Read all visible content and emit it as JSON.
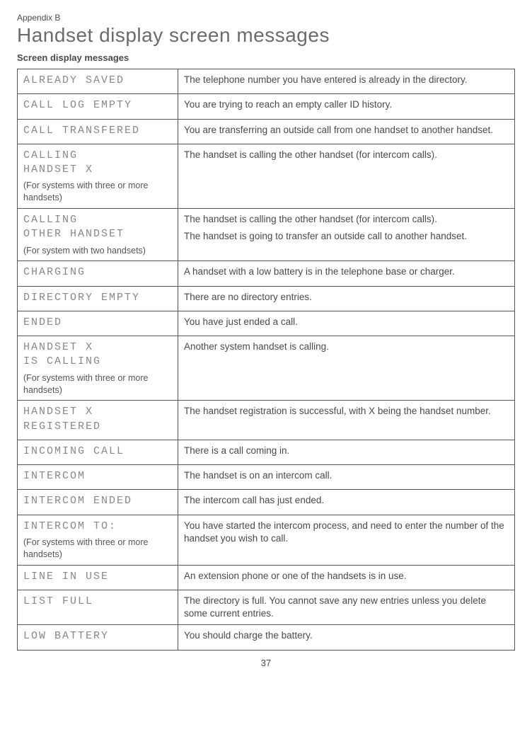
{
  "header": {
    "appendix": "Appendix B",
    "title": "Handset display screen messages",
    "subtitle": "Screen display messages"
  },
  "rows": [
    {
      "lcd": "ALREADY SAVED",
      "note": "",
      "desc": [
        "The telephone number you have entered is already in the directory."
      ]
    },
    {
      "lcd": "CALL LOG EMPTY",
      "note": "",
      "desc": [
        "You are trying to reach an empty caller ID history."
      ]
    },
    {
      "lcd": "CALL TRANSFERED",
      "note": "",
      "desc": [
        "You are transferring an outside call from one handset to another handset."
      ]
    },
    {
      "lcd": "CALLING\nHANDSET X",
      "note": "(For systems with three or more handsets)",
      "desc": [
        "The handset is calling the other handset (for intercom calls)."
      ]
    },
    {
      "lcd": "CALLING\nOTHER HANDSET",
      "note": "(For system with two handsets)",
      "desc": [
        "The handset is calling the other handset (for intercom calls).",
        "The handset is going to transfer an outside call to another handset."
      ]
    },
    {
      "lcd": "CHARGING",
      "note": "",
      "desc": [
        "A handset with a low battery is in the telephone base or charger."
      ]
    },
    {
      "lcd": "DIRECTORY EMPTY",
      "note": "",
      "desc": [
        "There are no directory entries."
      ]
    },
    {
      "lcd": "ENDED",
      "note": "",
      "desc": [
        "You have just ended a call."
      ]
    },
    {
      "lcd": "HANDSET X\nIS CALLING",
      "note": "(For systems with three or more handsets)",
      "desc": [
        "Another system handset is calling."
      ]
    },
    {
      "lcd": "HANDSET X\nREGISTERED",
      "note": "",
      "desc": [
        "The handset registration is successful, with X being the handset number."
      ]
    },
    {
      "lcd": "INCOMING CALL",
      "note": "",
      "desc": [
        "There is a call coming in."
      ]
    },
    {
      "lcd": "INTERCOM",
      "note": "",
      "desc": [
        "The handset is on an intercom call."
      ]
    },
    {
      "lcd": "INTERCOM ENDED",
      "note": "",
      "desc": [
        "The intercom call has just ended."
      ]
    },
    {
      "lcd": "INTERCOM TO:",
      "note": "(For systems with three or more handsets)",
      "desc": [
        "You have started the intercom process, and need to enter the number of the handset you wish to call."
      ]
    },
    {
      "lcd": "LINE IN USE",
      "note": "",
      "desc": [
        "An extension phone or one of the handsets is in use."
      ]
    },
    {
      "lcd": "LIST FULL",
      "note": "",
      "desc": [
        "The directory is full. You cannot save any new entries unless you delete some current entries."
      ]
    },
    {
      "lcd": "LOW BATTERY",
      "note": "",
      "desc": [
        "You should charge the battery."
      ]
    }
  ],
  "page_number": "37"
}
